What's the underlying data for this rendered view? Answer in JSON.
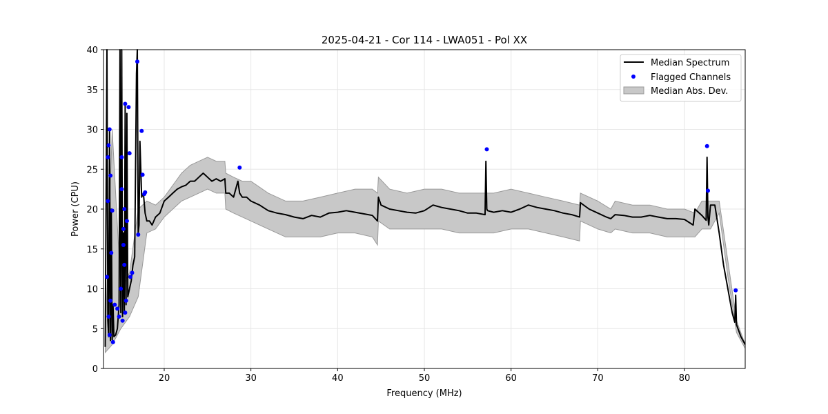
{
  "chart_data": {
    "type": "line",
    "title": "2025-04-21 - Cor 114 - LWA051 - Pol XX",
    "xlabel": "Frequency (MHz)",
    "ylabel": "Power (CPU)",
    "xlim": [
      13,
      87
    ],
    "ylim": [
      0,
      40
    ],
    "xticks": [
      20,
      30,
      40,
      50,
      60,
      70,
      80
    ],
    "yticks": [
      0,
      5,
      10,
      15,
      20,
      25,
      30,
      35,
      40
    ],
    "grid": true,
    "legend_position": "top-right",
    "colors": {
      "median": "#000000",
      "flagged": "#0000ff",
      "mad_fill": "#c8c8c8",
      "mad_edge": "#999999",
      "grid": "#e6e6e6"
    },
    "legend": [
      {
        "label": "Median Spectrum",
        "kind": "line"
      },
      {
        "label": "Flagged Channels",
        "kind": "point"
      },
      {
        "label": "Median Abs. Dev.",
        "kind": "band"
      }
    ],
    "series": [
      {
        "name": "Median Spectrum",
        "x": [
          13.2,
          13.4,
          13.5,
          13.6,
          13.7,
          13.8,
          13.9,
          14.0,
          14.1,
          14.2,
          14.4,
          14.6,
          14.8,
          14.9,
          15.0,
          15.1,
          15.2,
          15.3,
          15.4,
          15.5,
          15.6,
          15.7,
          15.8,
          16.0,
          16.2,
          16.4,
          16.6,
          16.8,
          16.9,
          17.0,
          17.1,
          17.2,
          17.4,
          17.6,
          17.8,
          18.0,
          18.3,
          18.6,
          19.0,
          19.5,
          20.0,
          20.5,
          21.0,
          21.5,
          22.0,
          22.5,
          23.0,
          23.5,
          24.0,
          24.5,
          25.0,
          25.5,
          26.0,
          26.5,
          27.0,
          27.1,
          27.5,
          28.0,
          28.5,
          28.7,
          29.0,
          29.5,
          30.0,
          31.0,
          32.0,
          33.0,
          34.0,
          35.0,
          36.0,
          37.0,
          38.0,
          39.0,
          40.0,
          41.0,
          42.0,
          43.0,
          44.0,
          44.6,
          44.7,
          45.0,
          46.0,
          47.0,
          48.0,
          49.0,
          50.0,
          51.0,
          52.0,
          53.0,
          54.0,
          55.0,
          56.0,
          57.0,
          57.1,
          57.2,
          57.3,
          58.0,
          59.0,
          60.0,
          61.0,
          62.0,
          63.0,
          64.0,
          65.0,
          66.0,
          67.0,
          67.9,
          68.0,
          69.0,
          70.0,
          71.0,
          71.5,
          72.0,
          73.0,
          74.0,
          75.0,
          76.0,
          77.0,
          78.0,
          79.0,
          80.0,
          81.0,
          81.2,
          82.0,
          82.5,
          82.6,
          82.7,
          82.8,
          83.0,
          83.5,
          84.0,
          84.5,
          85.0,
          85.5,
          85.8,
          85.9,
          86.0,
          86.5,
          87.0
        ],
        "y": [
          2.7,
          40.0,
          6.0,
          4.0,
          30.0,
          3.5,
          20.0,
          3.6,
          8.0,
          4.0,
          4.2,
          5.0,
          8.0,
          40.0,
          7.0,
          40.0,
          6.5,
          17.0,
          7.0,
          33.0,
          8.0,
          32.0,
          9.0,
          10.0,
          11.0,
          13.0,
          14.0,
          37.0,
          40.0,
          17.0,
          18.0,
          28.5,
          21.5,
          22.0,
          19.5,
          18.5,
          18.5,
          18.0,
          19.0,
          19.5,
          21.0,
          21.5,
          22.0,
          22.5,
          22.8,
          23.0,
          23.5,
          23.5,
          24.0,
          24.5,
          24.0,
          23.5,
          23.8,
          23.5,
          23.8,
          22.0,
          22.0,
          21.5,
          23.5,
          22.0,
          21.5,
          21.5,
          21.0,
          20.5,
          19.8,
          19.5,
          19.3,
          19.0,
          18.8,
          19.2,
          19.0,
          19.5,
          19.6,
          19.8,
          19.6,
          19.4,
          19.2,
          18.5,
          21.5,
          20.5,
          20.0,
          19.8,
          19.6,
          19.5,
          19.8,
          20.5,
          20.2,
          20.0,
          19.8,
          19.5,
          19.5,
          19.3,
          26.0,
          20.0,
          19.8,
          19.6,
          19.8,
          19.6,
          20.0,
          20.5,
          20.2,
          20.0,
          19.8,
          19.5,
          19.3,
          19.0,
          20.8,
          20.0,
          19.5,
          19.0,
          18.8,
          19.3,
          19.2,
          19.0,
          19.0,
          19.2,
          19.0,
          18.8,
          18.8,
          18.7,
          18.0,
          20.0,
          19.2,
          18.6,
          26.5,
          19.0,
          18.0,
          20.5,
          20.5,
          17.0,
          13.0,
          10.0,
          7.0,
          5.8,
          9.2,
          5.5,
          4.0,
          3.0
        ]
      }
    ],
    "band": {
      "name": "Median Abs. Dev.",
      "x": [
        13.2,
        14.0,
        15.0,
        16.0,
        17.0,
        18.0,
        19.0,
        20.0,
        21.0,
        22.0,
        23.0,
        24.0,
        25.0,
        26.0,
        27.0,
        27.1,
        28.0,
        29.0,
        30.0,
        32.0,
        34.0,
        36.0,
        38.0,
        40.0,
        42.0,
        44.0,
        44.6,
        44.7,
        46.0,
        48.0,
        50.0,
        52.0,
        54.0,
        56.0,
        58.0,
        60.0,
        62.0,
        64.0,
        66.0,
        67.9,
        68.0,
        70.0,
        71.5,
        72.0,
        74.0,
        76.0,
        78.0,
        80.0,
        81.2,
        82.0,
        83.0,
        84.0,
        85.0,
        86.0,
        87.0
      ],
      "upper": [
        3.5,
        30.0,
        10.0,
        12.0,
        20.0,
        21.0,
        20.5,
        21.5,
        23.0,
        24.5,
        25.5,
        26.0,
        26.5,
        26.0,
        26.0,
        24.5,
        24.0,
        23.5,
        23.5,
        22.0,
        21.0,
        21.0,
        21.5,
        22.0,
        22.5,
        22.5,
        22.0,
        24.0,
        22.5,
        22.0,
        22.5,
        22.5,
        22.0,
        22.0,
        22.0,
        22.5,
        22.0,
        21.5,
        21.0,
        20.5,
        22.0,
        21.0,
        20.0,
        21.0,
        20.5,
        20.5,
        20.0,
        20.0,
        19.5,
        21.0,
        21.0,
        21.0,
        13.5,
        6.0,
        3.0
      ],
      "lower": [
        2.0,
        3.0,
        5.0,
        6.5,
        9.0,
        17.0,
        17.5,
        19.0,
        20.0,
        21.0,
        21.5,
        22.0,
        22.5,
        22.0,
        22.0,
        20.0,
        19.5,
        19.0,
        18.5,
        17.5,
        16.5,
        16.5,
        16.5,
        17.0,
        17.0,
        16.5,
        15.5,
        18.5,
        17.5,
        17.5,
        17.5,
        17.5,
        17.0,
        17.0,
        17.0,
        17.5,
        17.5,
        17.0,
        16.5,
        16.0,
        18.5,
        17.5,
        17.0,
        17.5,
        17.0,
        17.0,
        16.5,
        16.5,
        16.5,
        17.5,
        17.5,
        19.5,
        11.5,
        4.5,
        2.5
      ]
    },
    "flagged": {
      "name": "Flagged Channels",
      "x": [
        13.4,
        13.5,
        13.5,
        13.6,
        13.6,
        13.7,
        13.7,
        13.8,
        13.8,
        13.9,
        14.0,
        14.1,
        14.3,
        14.6,
        14.8,
        15.0,
        15.1,
        15.1,
        15.2,
        15.3,
        15.3,
        15.4,
        15.4,
        15.5,
        15.5,
        15.6,
        15.7,
        15.9,
        16.0,
        16.1,
        16.3,
        16.9,
        17.0,
        17.4,
        17.5,
        17.7,
        17.8,
        28.7,
        57.2,
        82.6,
        82.7,
        85.9
      ],
      "y": [
        11.5,
        21.0,
        26.5,
        28.0,
        6.5,
        30.0,
        4.2,
        24.2,
        8.5,
        14.5,
        19.8,
        3.3,
        8.0,
        7.5,
        6.5,
        10.0,
        26.5,
        22.5,
        6.0,
        15.5,
        17.5,
        20.0,
        13.0,
        7.0,
        33.2,
        8.5,
        18.5,
        32.8,
        27.0,
        11.5,
        12.0,
        38.5,
        16.8,
        29.8,
        24.3,
        21.9,
        22.1,
        25.2,
        27.5,
        27.9,
        22.3,
        9.8
      ]
    }
  }
}
